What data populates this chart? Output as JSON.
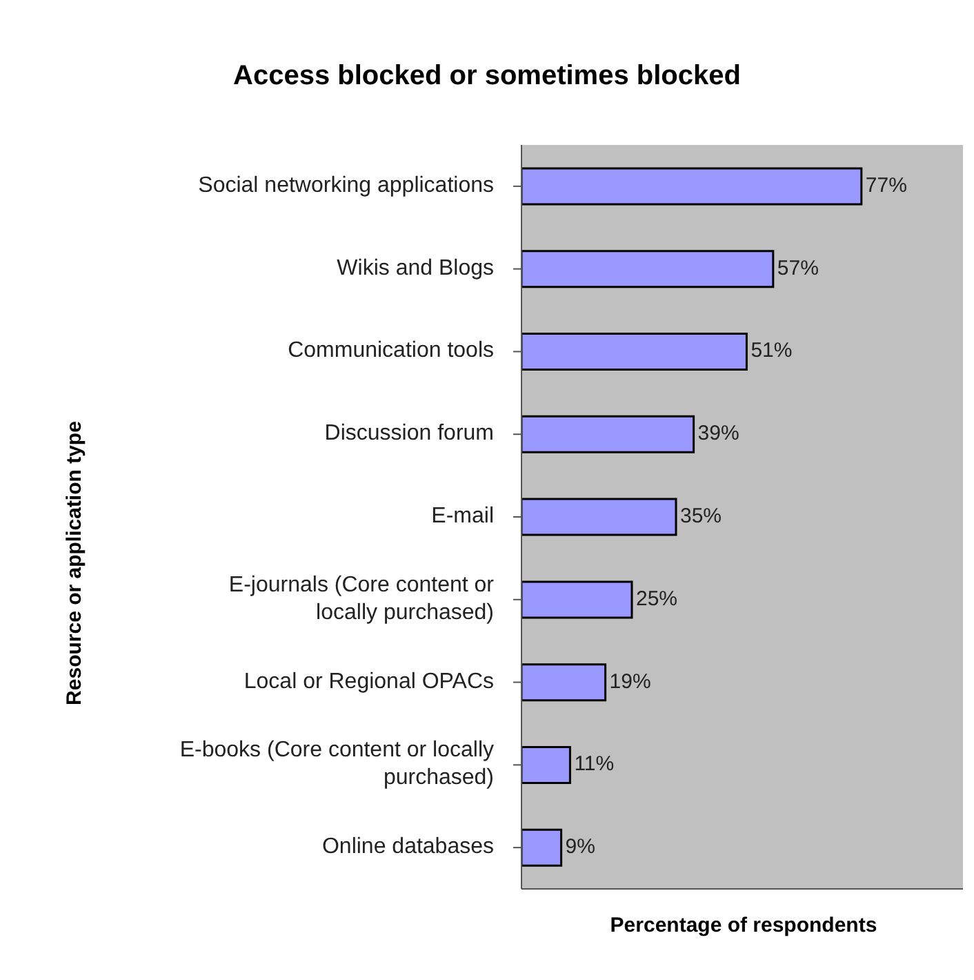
{
  "chart_data": {
    "type": "bar",
    "orientation": "horizontal",
    "title": "Access blocked or sometimes blocked",
    "xlabel": "Percentage of respondents",
    "ylabel": "Resource or application type",
    "categories": [
      "Social networking applications",
      "Wikis and Blogs",
      "Communication tools",
      "Discussion forum",
      "E-mail",
      "E-journals (Core content or locally purchased)",
      "Local or Regional OPACs",
      "E-books (Core content or locally purchased)",
      "Online databases"
    ],
    "values": [
      77,
      57,
      51,
      39,
      35,
      25,
      19,
      11,
      9
    ],
    "value_labels": [
      "77%",
      "57%",
      "51%",
      "39%",
      "35%",
      "25%",
      "19%",
      "11%",
      "9%"
    ],
    "color": "#9999ff",
    "xlim": [
      0,
      100
    ],
    "tick_labels": "y"
  }
}
